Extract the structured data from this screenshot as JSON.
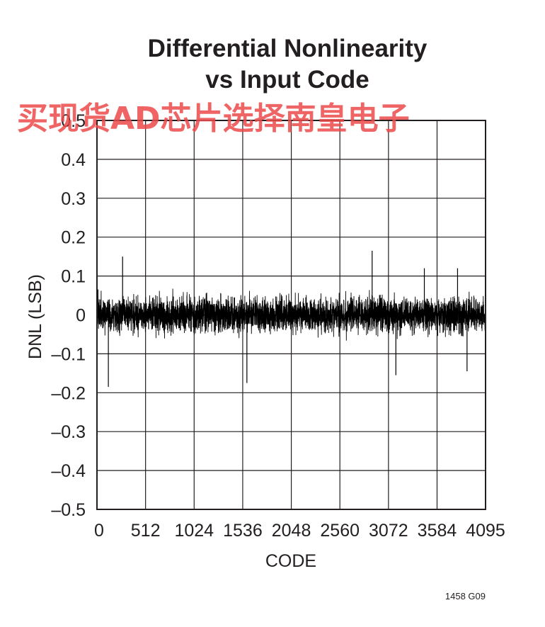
{
  "chart_data": {
    "type": "line",
    "title_line1": "Differential Nonlinearity",
    "title_line2": "vs Input Code",
    "xlabel": "CODE",
    "ylabel": "DNL (LSB)",
    "xlim": [
      0,
      4095
    ],
    "ylim": [
      -0.5,
      0.5
    ],
    "x_ticks": [
      0,
      512,
      1024,
      1536,
      2048,
      2560,
      3072,
      3584,
      4095
    ],
    "x_tick_labels": [
      "0",
      "512",
      "1024",
      "1536",
      "2048",
      "2560",
      "3072",
      "3584",
      "4095"
    ],
    "y_ticks": [
      0.5,
      0.4,
      0.3,
      0.2,
      0.1,
      0,
      -0.1,
      -0.2,
      -0.3,
      -0.4,
      -0.5
    ],
    "y_tick_labels": [
      "0.5",
      "0.4",
      "0.3",
      "0.2",
      "0.1",
      "0",
      "–0.1",
      "–0.2",
      "–0.3",
      "–0.4",
      "–0.5"
    ],
    "grid": true,
    "series": [
      {
        "color": "#000000",
        "typical_range": [
          -0.08,
          0.08
        ],
        "peaks": [
          {
            "x": 120,
            "y": -0.185
          },
          {
            "x": 270,
            "y": 0.15
          },
          {
            "x": 1580,
            "y": -0.175
          },
          {
            "x": 2900,
            "y": 0.165
          },
          {
            "x": 3150,
            "y": -0.155
          },
          {
            "x": 3450,
            "y": 0.12
          },
          {
            "x": 3800,
            "y": 0.12
          },
          {
            "x": 3900,
            "y": -0.145
          }
        ]
      }
    ]
  },
  "watermark": "买现货AD芯片选择南皇电子",
  "figure_id": "1458 G09"
}
